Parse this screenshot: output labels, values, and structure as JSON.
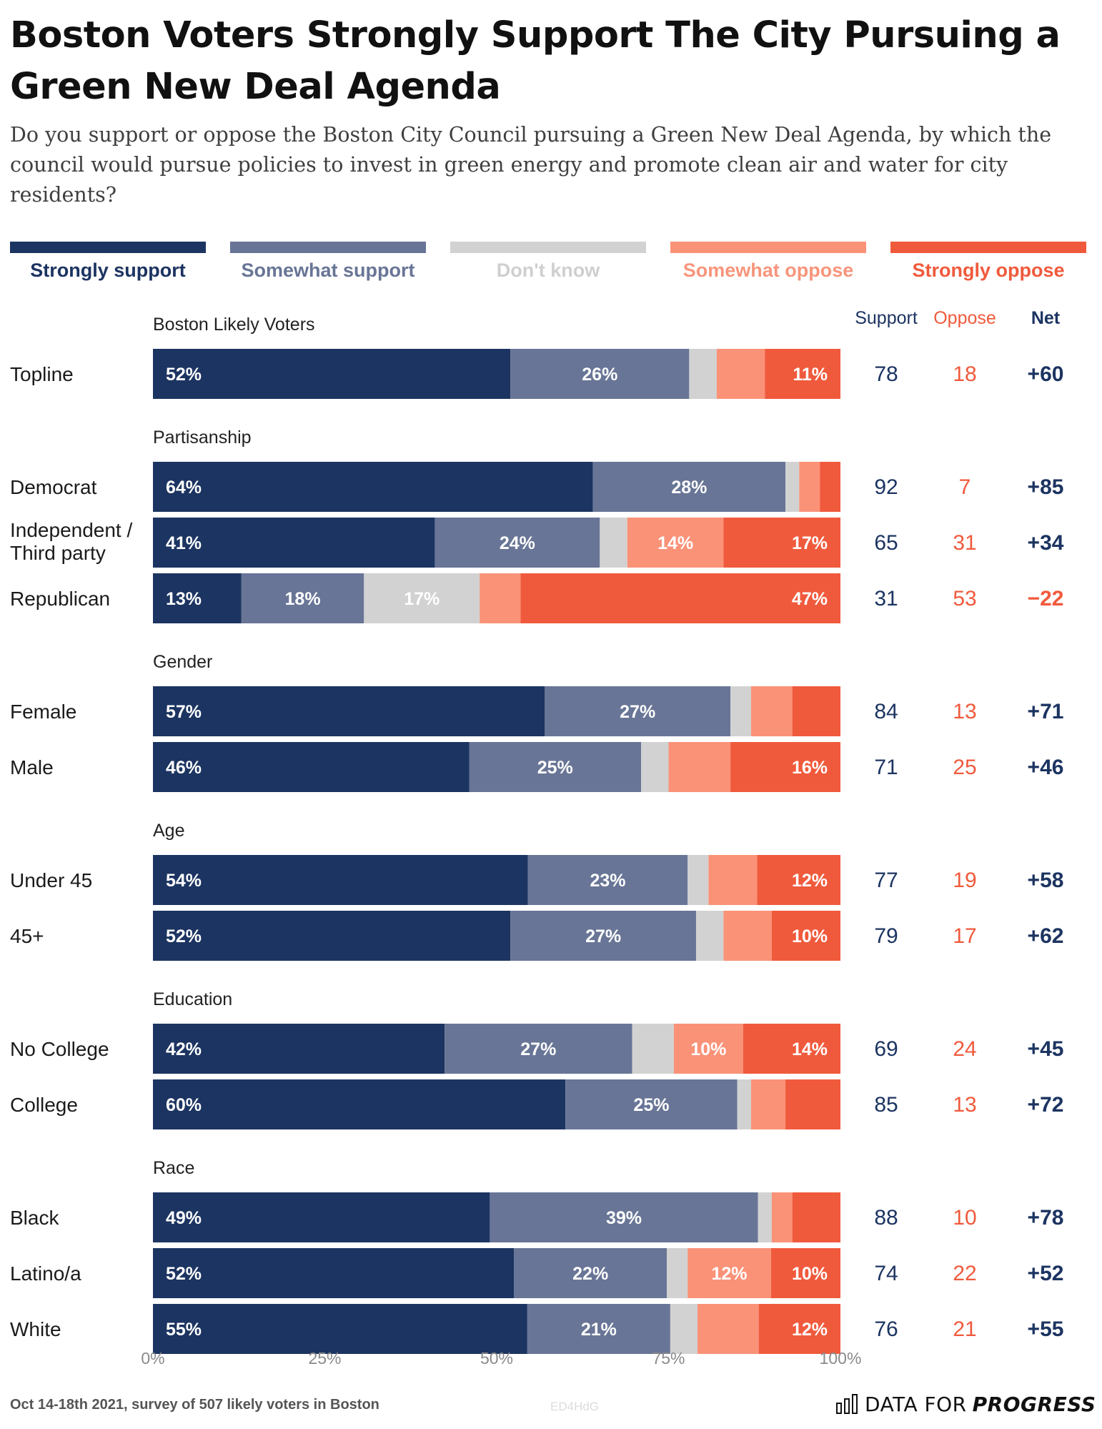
{
  "title": "Boston Voters Strongly Support The City Pursuing a Green New Deal Agenda",
  "subtitle": "Do you support or oppose the Boston City Council pursuing a Green New Deal Agenda, by which the council would pursue policies to invest in green energy and promote clean air and water for city residents?",
  "legend": [
    {
      "label": "Strongly support",
      "color": "#1c3461",
      "text_color": "#1c3461"
    },
    {
      "label": "Somewhat support",
      "color": "#687596",
      "text_color": "#687596"
    },
    {
      "label": "Don't know",
      "color": "#d2d2d2",
      "text_color": "#cfcfcf"
    },
    {
      "label": "Somewhat oppose",
      "color": "#fa9278",
      "text_color": "#f7957c"
    },
    {
      "label": "Strongly oppose",
      "color": "#f05a3c",
      "text_color": "#f05a3c"
    }
  ],
  "columns": {
    "support": "Support",
    "oppose": "Oppose",
    "net": "Net"
  },
  "chart_data": {
    "type": "bar",
    "orientation": "horizontal",
    "stacked": true,
    "xlim": [
      0,
      100
    ],
    "xticks": [
      "0%",
      "25%",
      "50%",
      "75%",
      "100%"
    ],
    "series_names": [
      "Strongly support",
      "Somewhat support",
      "Don't know",
      "Somewhat oppose",
      "Strongly oppose"
    ],
    "groups": [
      {
        "label": "Boston Likely Voters",
        "rows": [
          {
            "label": "Topline",
            "values": [
              52,
              26,
              4,
              7,
              11
            ],
            "labels": [
              "52%",
              "26%",
              "",
              "",
              "11%"
            ],
            "support": "78",
            "oppose": "18",
            "net": "+60"
          }
        ]
      },
      {
        "label": "Partisanship",
        "rows": [
          {
            "label": "Democrat",
            "values": [
              64,
              28,
              2,
              3,
              3
            ],
            "labels": [
              "64%",
              "28%",
              "",
              "",
              ""
            ],
            "support": "92",
            "oppose": "7",
            "net": "+85"
          },
          {
            "label": "Independent / Third party",
            "values": [
              41,
              24,
              4,
              14,
              17
            ],
            "labels": [
              "41%",
              "24%",
              "",
              "14%",
              "17%"
            ],
            "support": "65",
            "oppose": "31",
            "net": "+34"
          },
          {
            "label": "Republican",
            "values": [
              13,
              18,
              17,
              6,
              47
            ],
            "labels": [
              "13%",
              "18%",
              "17%",
              "",
              "47%"
            ],
            "support": "31",
            "oppose": "53",
            "net": "−22"
          }
        ]
      },
      {
        "label": "Gender",
        "rows": [
          {
            "label": "Female",
            "values": [
              57,
              27,
              3,
              6,
              7
            ],
            "labels": [
              "57%",
              "27%",
              "",
              "",
              ""
            ],
            "support": "84",
            "oppose": "13",
            "net": "+71"
          },
          {
            "label": "Male",
            "values": [
              46,
              25,
              4,
              9,
              16
            ],
            "labels": [
              "46%",
              "25%",
              "",
              "",
              "16%"
            ],
            "support": "71",
            "oppose": "25",
            "net": "+46"
          }
        ]
      },
      {
        "label": "Age",
        "rows": [
          {
            "label": "Under 45",
            "values": [
              54,
              23,
              3,
              7,
              12
            ],
            "labels": [
              "54%",
              "23%",
              "",
              "",
              "12%"
            ],
            "support": "77",
            "oppose": "19",
            "net": "+58"
          },
          {
            "label": "45+",
            "values": [
              52,
              27,
              4,
              7,
              10
            ],
            "labels": [
              "52%",
              "27%",
              "",
              "",
              "10%"
            ],
            "support": "79",
            "oppose": "17",
            "net": "+62"
          }
        ]
      },
      {
        "label": "Education",
        "rows": [
          {
            "label": "No College",
            "values": [
              42,
              27,
              6,
              10,
              14
            ],
            "labels": [
              "42%",
              "27%",
              "",
              "10%",
              "14%"
            ],
            "support": "69",
            "oppose": "24",
            "net": "+45"
          },
          {
            "label": "College",
            "values": [
              60,
              25,
              2,
              5,
              8
            ],
            "labels": [
              "60%",
              "25%",
              "",
              "",
              ""
            ],
            "support": "85",
            "oppose": "13",
            "net": "+72"
          }
        ]
      },
      {
        "label": "Race",
        "rows": [
          {
            "label": "Black",
            "values": [
              49,
              39,
              2,
              3,
              7
            ],
            "labels": [
              "49%",
              "39%",
              "",
              "",
              ""
            ],
            "support": "88",
            "oppose": "10",
            "net": "+78"
          },
          {
            "label": "Latino/a",
            "values": [
              52,
              22,
              3,
              12,
              10
            ],
            "labels": [
              "52%",
              "22%",
              "",
              "12%",
              "10%"
            ],
            "support": "74",
            "oppose": "22",
            "net": "+52"
          },
          {
            "label": "White",
            "values": [
              55,
              21,
              4,
              9,
              12
            ],
            "labels": [
              "55%",
              "21%",
              "",
              "",
              "12%"
            ],
            "support": "76",
            "oppose": "21",
            "net": "+55"
          }
        ]
      }
    ]
  },
  "footer": {
    "note": "Oct 14-18th 2021, survey of 507 likely voters in Boston",
    "watermark": "ED4HdG",
    "brand_prefix": "DATA FOR",
    "brand_strong": "PROGRESS"
  }
}
